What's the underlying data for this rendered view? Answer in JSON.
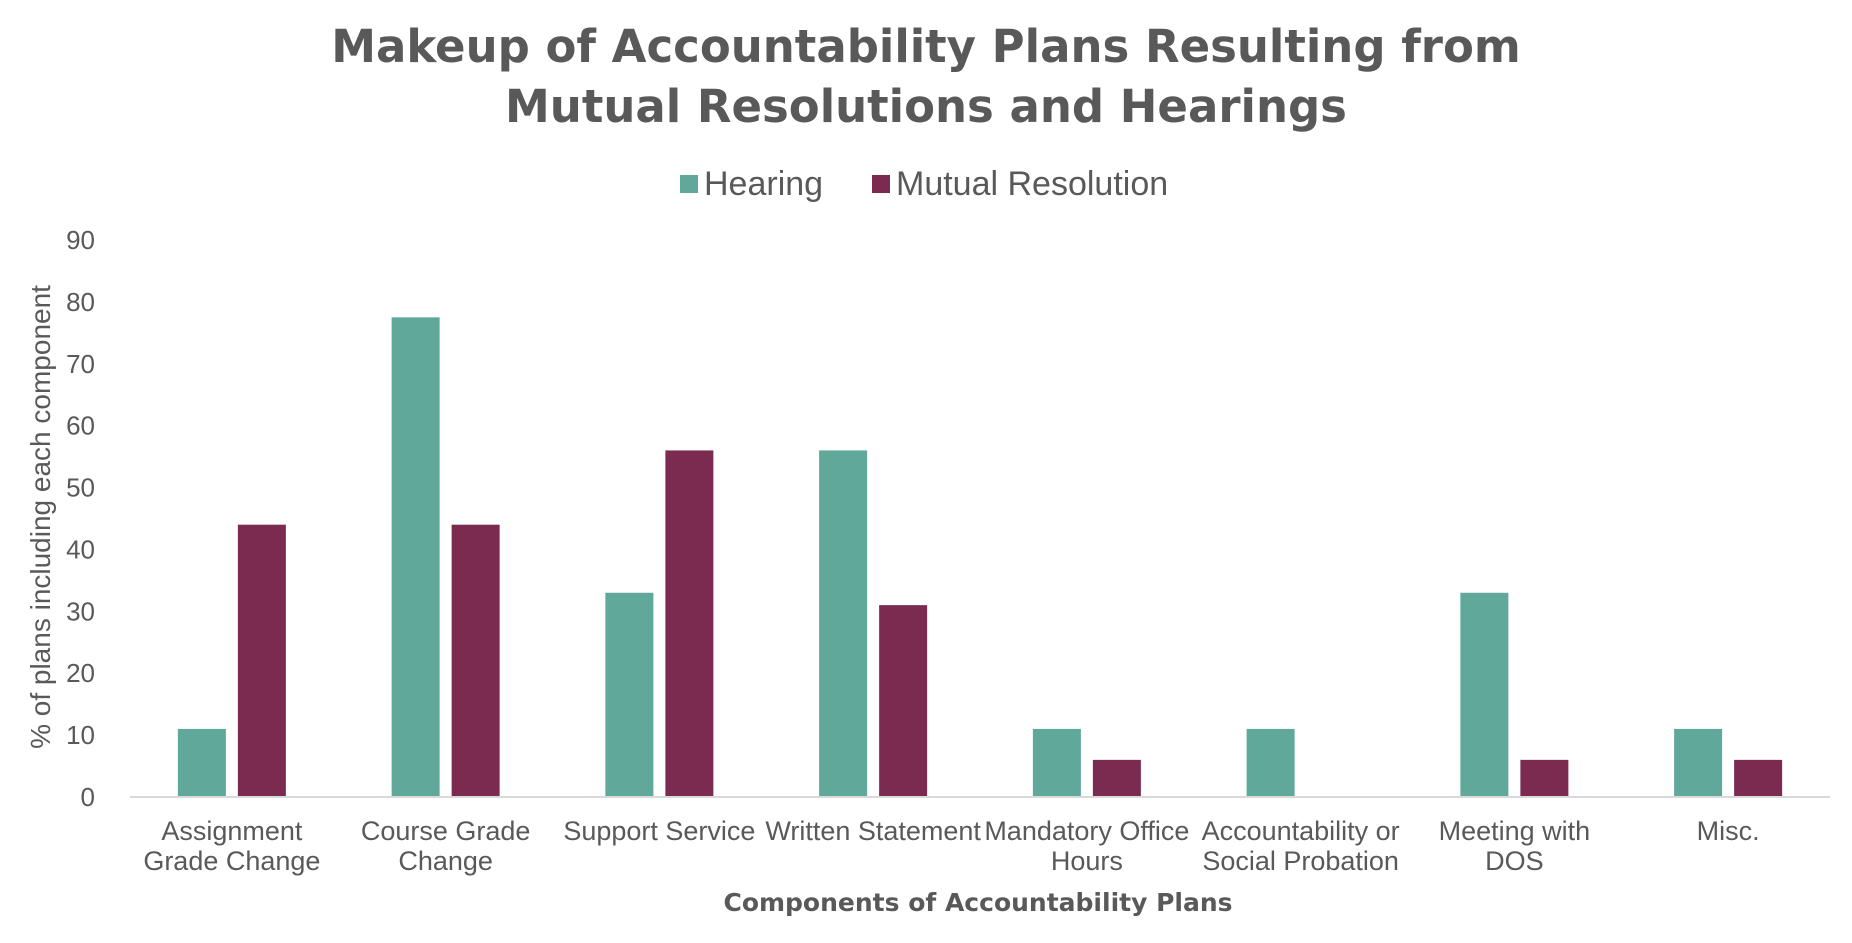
{
  "chart_data": {
    "type": "bar",
    "title_lines": [
      "Makeup of Accountability Plans Resulting from",
      "Mutual Resolutions and Hearings"
    ],
    "xlabel": "Components of Accountability Plans",
    "ylabel": "% of plans including each component",
    "ylim": [
      0,
      90
    ],
    "yticks": [
      0,
      10,
      20,
      30,
      40,
      50,
      60,
      70,
      80,
      90
    ],
    "grid": false,
    "legend_position": "top-center",
    "categories": [
      [
        "Assignment",
        "Grade Change"
      ],
      [
        "Course Grade",
        "Change"
      ],
      [
        "Support Service"
      ],
      [
        "Written Statement"
      ],
      [
        "Mandatory Office",
        "Hours"
      ],
      [
        "Accountability or",
        "Social Probation"
      ],
      [
        "Meeting with",
        "DOS"
      ],
      [
        "Misc."
      ]
    ],
    "series": [
      {
        "name": "Hearing",
        "color": "#5fa89a",
        "values": [
          11,
          77.5,
          33,
          56,
          11,
          11,
          33,
          11
        ]
      },
      {
        "name": "Mutual Resolution",
        "color": "#7b2a50",
        "values": [
          44,
          44,
          56,
          31,
          6,
          0,
          6,
          6
        ]
      }
    ]
  }
}
